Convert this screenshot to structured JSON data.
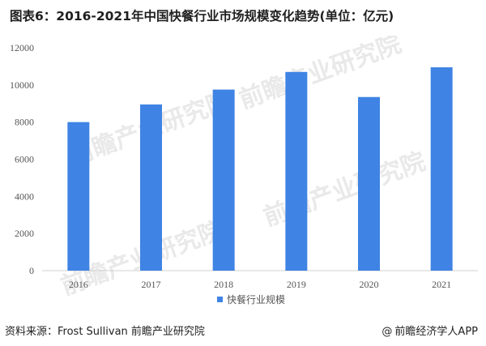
{
  "title": "图表6：2016-2021年中国快餐行业市场规模变化趋势(单位：亿元)",
  "chart_data": {
    "type": "bar",
    "categories": [
      "2016",
      "2017",
      "2018",
      "2019",
      "2020",
      "2021"
    ],
    "series": [
      {
        "name": "快餐行业规模",
        "values": [
          8000,
          8950,
          9750,
          10700,
          9350,
          10950
        ]
      }
    ],
    "ylim": [
      0,
      12000
    ],
    "yticks": [
      0,
      2000,
      4000,
      6000,
      8000,
      10000,
      12000
    ],
    "grid": false,
    "legend_position": "bottom",
    "bar_color": "#3f83e4"
  },
  "watermark": "前瞻产业研究院",
  "footer": {
    "source": "资料来源：Frost Sullivan 前瞻产业研究院",
    "brand_symbol": "@",
    "brand": "前瞻经济学人APP"
  }
}
